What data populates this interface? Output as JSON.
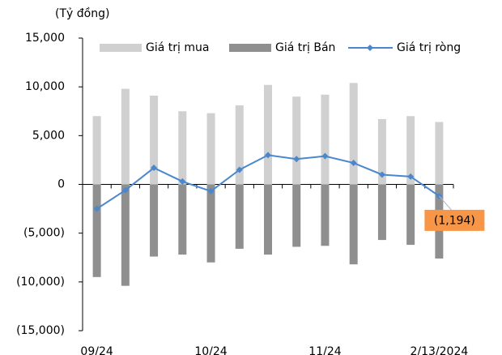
{
  "chart_data": {
    "type": "bar_line",
    "y_unit_label": "(Tỷ đồng)",
    "categories": [
      "09/24",
      null,
      null,
      null,
      "10/24",
      null,
      null,
      null,
      "11/24",
      null,
      null,
      null,
      "2/13/2024"
    ],
    "series": [
      {
        "name": "Giá trị mua",
        "color": "#d0d0d0",
        "kind": "bar",
        "values": [
          7000,
          9800,
          9100,
          7500,
          7300,
          8100,
          10200,
          9000,
          9200,
          10400,
          6700,
          7000,
          6400
        ]
      },
      {
        "name": "Giá trị Bán",
        "color": "#8f8f8f",
        "kind": "bar",
        "values": [
          -9500,
          -10400,
          -7400,
          -7200,
          -8000,
          -6600,
          -7200,
          -6400,
          -6300,
          -8200,
          -5700,
          -6200,
          -7600
        ]
      },
      {
        "name": "Giá trị ròng",
        "color": "#4a87cc",
        "kind": "line",
        "values": [
          -2500,
          -600,
          1700,
          300,
          -700,
          1500,
          3000,
          2600,
          2900,
          2200,
          1000,
          800,
          -1194
        ],
        "value_labels": [
          null,
          null,
          null,
          null,
          null,
          null,
          null,
          null,
          null,
          null,
          null,
          null,
          "(1,194)"
        ]
      }
    ],
    "annotation_color": "#f79646",
    "ylim": [
      -15000,
      15000
    ],
    "yticks": [
      {
        "value": -15000,
        "label": "(15,000)"
      },
      {
        "value": -10000,
        "label": "(10,000)"
      },
      {
        "value": -5000,
        "label": "(5,000)"
      },
      0,
      {
        "value": 5000,
        "label": "5,000"
      },
      {
        "value": 10000,
        "label": "10,000"
      },
      {
        "value": 15000,
        "label": "15,000"
      }
    ],
    "legend": "top"
  }
}
